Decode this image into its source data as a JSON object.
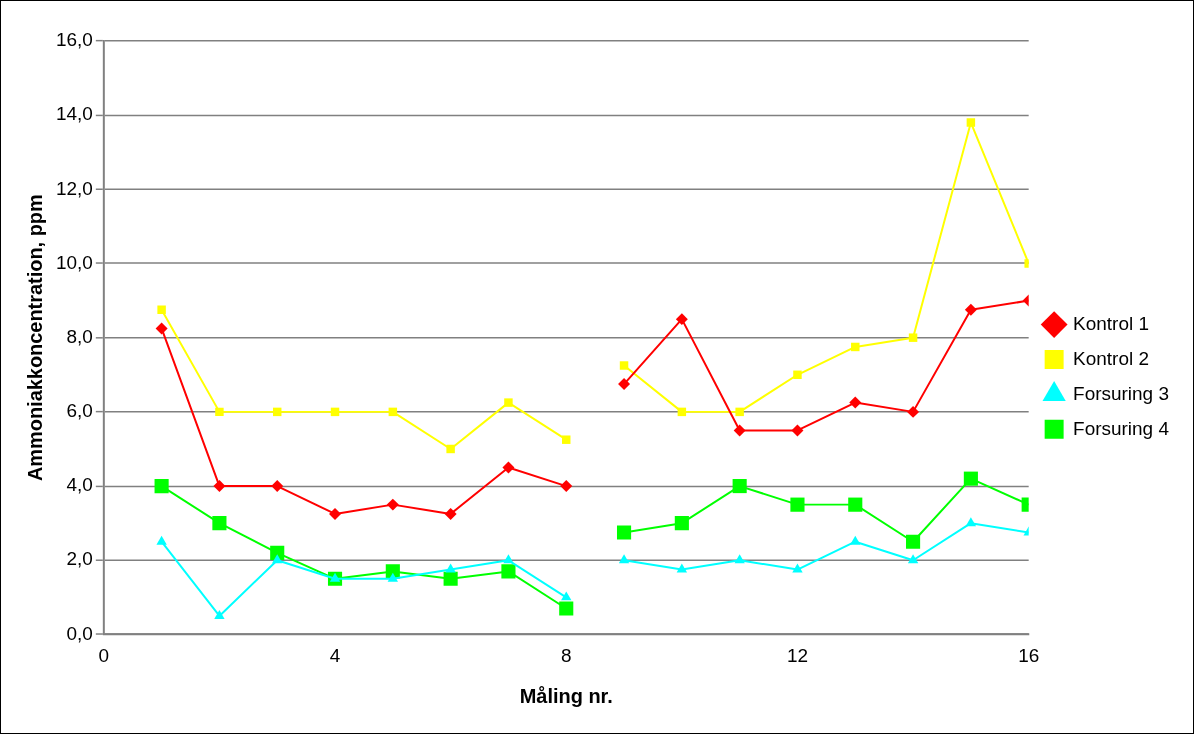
{
  "chart_data": {
    "type": "line",
    "xlabel": "Måling nr.",
    "ylabel": "Ammoniakkoncentration, ppm",
    "x": [
      1,
      2,
      3,
      4,
      5,
      6,
      7,
      8,
      8.5,
      9,
      10,
      11,
      12,
      13,
      14,
      15,
      16
    ],
    "xlim": [
      0,
      16
    ],
    "xticks": [
      0,
      4,
      8,
      12,
      16
    ],
    "ylim": [
      0,
      16
    ],
    "yticks": [
      {
        "value": 0,
        "label": "0,0"
      },
      {
        "value": 2,
        "label": "2,0"
      },
      {
        "value": 4,
        "label": "4,0"
      },
      {
        "value": 6,
        "label": "6,0"
      },
      {
        "value": 8,
        "label": "8,0"
      },
      {
        "value": 10,
        "label": "10,0"
      },
      {
        "value": 12,
        "label": "12,0"
      },
      {
        "value": 14,
        "label": "14,0"
      },
      {
        "value": 16,
        "label": "16,0"
      }
    ],
    "grid": "y",
    "legend": "right",
    "line_style": "solid",
    "series": [
      {
        "name": "Kontrol 1",
        "color": "#ff0000",
        "marker": "diamond",
        "values": [
          8.25,
          4,
          4,
          3.25,
          3.5,
          3.25,
          4.5,
          4,
          null,
          6.75,
          8.5,
          5.5,
          5.5,
          6.25,
          6,
          8.75,
          9
        ]
      },
      {
        "name": "Kontrol 2",
        "color": "#ffff00",
        "marker": "square",
        "values": [
          8.75,
          6,
          6,
          6,
          6,
          5,
          6.25,
          5.25,
          null,
          7.25,
          6,
          6,
          7,
          7.75,
          8,
          13.8,
          10
        ]
      },
      {
        "name": "Forsuring 3",
        "color": "#00ffff",
        "marker": "triangle",
        "values": [
          2.5,
          0.5,
          2,
          1.5,
          1.5,
          1.75,
          2,
          1,
          null,
          2,
          1.75,
          2,
          1.75,
          2.5,
          2,
          3,
          2.75
        ]
      },
      {
        "name": "Forsuring 4",
        "color": "#00ff00",
        "marker": "square",
        "values": [
          4,
          3,
          2.2,
          1.5,
          1.7,
          1.5,
          1.7,
          0.7,
          null,
          2.75,
          3,
          4,
          3.5,
          3.5,
          2.5,
          4.2,
          3.5
        ]
      }
    ]
  }
}
